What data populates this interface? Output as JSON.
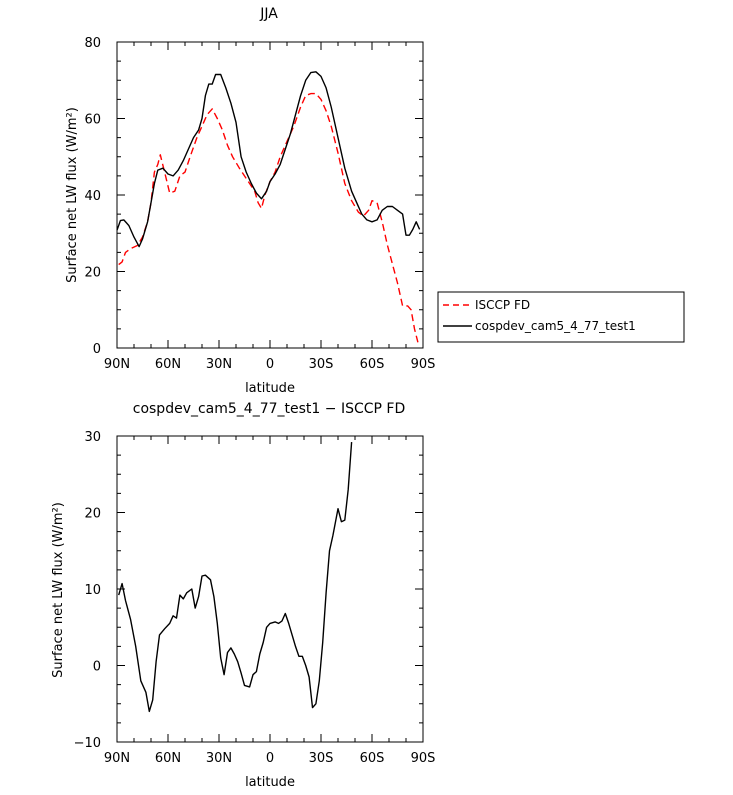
{
  "chart_data": [
    {
      "type": "line",
      "title": "JJA",
      "xlabel": "latitude",
      "ylabel": "Surface net LW flux (W/m²)",
      "xlim": [
        90,
        -90
      ],
      "ylim": [
        0,
        80
      ],
      "x_ticks": [
        90,
        60,
        30,
        0,
        -30,
        -60,
        -90
      ],
      "x_tick_labels": [
        "90N",
        "60N",
        "30N",
        "0",
        "30S",
        "60S",
        "90S"
      ],
      "y_ticks": [
        0,
        20,
        40,
        60,
        80
      ],
      "y_tick_labels": [
        "0",
        "20",
        "40",
        "60",
        "80"
      ],
      "legend_position": "right",
      "series": [
        {
          "name": "ISCCP FD",
          "color": "#ff0000",
          "dash": "dashed",
          "points": [
            [
              89,
              21.8
            ],
            [
              87,
              22.5
            ],
            [
              85,
              25
            ],
            [
              82,
              26
            ],
            [
              78,
              26.8
            ],
            [
              75,
              29
            ],
            [
              72,
              33
            ],
            [
              70,
              38
            ],
            [
              68,
              46
            ],
            [
              66,
              48
            ],
            [
              64.5,
              50.5
            ],
            [
              62,
              46
            ],
            [
              59,
              40.5
            ],
            [
              56,
              41
            ],
            [
              53,
              45
            ],
            [
              50,
              46
            ],
            [
              47,
              50
            ],
            [
              43,
              55
            ],
            [
              40,
              58
            ],
            [
              37,
              61
            ],
            [
              34,
              62.5
            ],
            [
              31,
              60
            ],
            [
              28,
              57
            ],
            [
              25,
              53
            ],
            [
              22,
              50
            ],
            [
              18,
              47
            ],
            [
              15,
              45
            ],
            [
              12,
              43
            ],
            [
              9,
              41
            ],
            [
              7,
              38
            ],
            [
              5,
              36.5
            ],
            [
              3,
              40
            ],
            [
              0,
              43.5
            ],
            [
              -3,
              46
            ],
            [
              -6,
              50
            ],
            [
              -10,
              54
            ],
            [
              -14,
              58
            ],
            [
              -18,
              63
            ],
            [
              -21,
              66
            ],
            [
              -24,
              66.5
            ],
            [
              -27,
              66.5
            ],
            [
              -30,
              65
            ],
            [
              -33,
              62
            ],
            [
              -36,
              58
            ],
            [
              -40,
              51
            ],
            [
              -44,
              43
            ],
            [
              -48,
              38.5
            ],
            [
              -52,
              35.5
            ],
            [
              -55,
              34.5
            ],
            [
              -58,
              36
            ],
            [
              -60,
              38.5
            ],
            [
              -63,
              38
            ],
            [
              -66,
              33
            ],
            [
              -69,
              27
            ],
            [
              -72,
              22
            ],
            [
              -75,
              17
            ],
            [
              -78,
              11
            ],
            [
              -81,
              11
            ],
            [
              -83,
              10
            ],
            [
              -85,
              5
            ],
            [
              -87,
              1.5
            ]
          ]
        },
        {
          "name": "cospdev_cam5_4_77_test1",
          "color": "#000000",
          "dash": "solid",
          "points": [
            [
              90,
              30.8
            ],
            [
              88,
              33.3
            ],
            [
              86,
              33.5
            ],
            [
              83,
              32
            ],
            [
              80,
              29
            ],
            [
              77,
              26.5
            ],
            [
              75,
              28.5
            ],
            [
              72,
              33
            ],
            [
              70,
              38
            ],
            [
              68,
              43
            ],
            [
              66,
              46.5
            ],
            [
              63,
              47
            ],
            [
              60,
              45.5
            ],
            [
              57,
              45
            ],
            [
              54,
              46.5
            ],
            [
              51,
              49
            ],
            [
              48,
              52
            ],
            [
              45,
              55
            ],
            [
              42,
              57
            ],
            [
              40,
              60
            ],
            [
              38,
              66
            ],
            [
              36,
              69
            ],
            [
              34,
              69
            ],
            [
              32,
              71.5
            ],
            [
              29,
              71.5
            ],
            [
              26,
              68
            ],
            [
              23,
              64
            ],
            [
              20,
              59
            ],
            [
              17,
              50
            ],
            [
              14,
              46
            ],
            [
              11,
              43
            ],
            [
              8,
              40.5
            ],
            [
              5,
              39
            ],
            [
              2,
              41
            ],
            [
              0,
              43.5
            ],
            [
              -3,
              45.5
            ],
            [
              -6,
              48
            ],
            [
              -9,
              52
            ],
            [
              -12,
              56
            ],
            [
              -15,
              61
            ],
            [
              -18,
              66
            ],
            [
              -21,
              70
            ],
            [
              -24,
              72
            ],
            [
              -27,
              72.2
            ],
            [
              -30,
              71
            ],
            [
              -33,
              68
            ],
            [
              -36,
              63
            ],
            [
              -40,
              55
            ],
            [
              -44,
              47
            ],
            [
              -48,
              41
            ],
            [
              -51,
              38
            ],
            [
              -54,
              35
            ],
            [
              -57,
              33.5
            ],
            [
              -60,
              33
            ],
            [
              -63,
              33.5
            ],
            [
              -66,
              36
            ],
            [
              -69,
              37
            ],
            [
              -72,
              37
            ],
            [
              -75,
              36
            ],
            [
              -78,
              35
            ],
            [
              -80,
              29.5
            ],
            [
              -82,
              29.5
            ],
            [
              -84,
              31
            ],
            [
              -86,
              33
            ],
            [
              -88,
              31
            ]
          ]
        }
      ]
    },
    {
      "type": "line",
      "title": "cospdev_cam5_4_77_test1 − ISCCP FD",
      "xlabel": "latitude",
      "ylabel": "Surface net LW flux (W/m²)",
      "xlim": [
        90,
        -90
      ],
      "ylim": [
        -10,
        30
      ],
      "x_ticks": [
        90,
        60,
        30,
        0,
        -30,
        -60,
        -90
      ],
      "x_tick_labels": [
        "90N",
        "60N",
        "30N",
        "0",
        "30S",
        "60S",
        "90S"
      ],
      "y_ticks": [
        -10,
        0,
        10,
        20,
        30
      ],
      "y_tick_labels": [
        "−10",
        "0",
        "10",
        "20",
        "30"
      ],
      "series": [
        {
          "color": "#000000",
          "dash": "solid",
          "points": [
            [
              89,
              9.2
            ],
            [
              87,
              10.7
            ],
            [
              85,
              8.5
            ],
            [
              82,
              6
            ],
            [
              79,
              2.5
            ],
            [
              76,
              -2
            ],
            [
              73,
              -3.5
            ],
            [
              71,
              -6
            ],
            [
              69,
              -4.5
            ],
            [
              67,
              0.5
            ],
            [
              65,
              4
            ],
            [
              62,
              4.8
            ],
            [
              59,
              5.5
            ],
            [
              57,
              6.5
            ],
            [
              55,
              6.2
            ],
            [
              53,
              9.2
            ],
            [
              51,
              8.7
            ],
            [
              49,
              9.5
            ],
            [
              46,
              10
            ],
            [
              44,
              7.5
            ],
            [
              42,
              9
            ],
            [
              40,
              11.7
            ],
            [
              38,
              11.8
            ],
            [
              35,
              11.2
            ],
            [
              33,
              9
            ],
            [
              31,
              5.5
            ],
            [
              29,
              1
            ],
            [
              27,
              -1.2
            ],
            [
              25,
              1.7
            ],
            [
              23,
              2.3
            ],
            [
              21,
              1.5
            ],
            [
              19,
              0.5
            ],
            [
              17,
              -1
            ],
            [
              15,
              -2.6
            ],
            [
              12,
              -2.8
            ],
            [
              10,
              -1.2
            ],
            [
              8,
              -0.8
            ],
            [
              6,
              1.5
            ],
            [
              4,
              3
            ],
            [
              2,
              5
            ],
            [
              0,
              5.5
            ],
            [
              -3,
              5.7
            ],
            [
              -5,
              5.5
            ],
            [
              -7,
              5.8
            ],
            [
              -9,
              6.8
            ],
            [
              -11,
              5.5
            ],
            [
              -13,
              4
            ],
            [
              -15,
              2.5
            ],
            [
              -17,
              1.2
            ],
            [
              -19,
              1.2
            ],
            [
              -21,
              0
            ],
            [
              -23,
              -1.5
            ],
            [
              -25,
              -5.5
            ],
            [
              -27,
              -5
            ],
            [
              -29,
              -2
            ],
            [
              -31,
              3
            ],
            [
              -33,
              9.5
            ],
            [
              -35,
              15
            ],
            [
              -37,
              17
            ],
            [
              -40,
              20.5
            ],
            [
              -42,
              18.8
            ],
            [
              -44,
              19
            ],
            [
              -46,
              23
            ],
            [
              -48,
              29.2
            ]
          ]
        }
      ]
    }
  ]
}
